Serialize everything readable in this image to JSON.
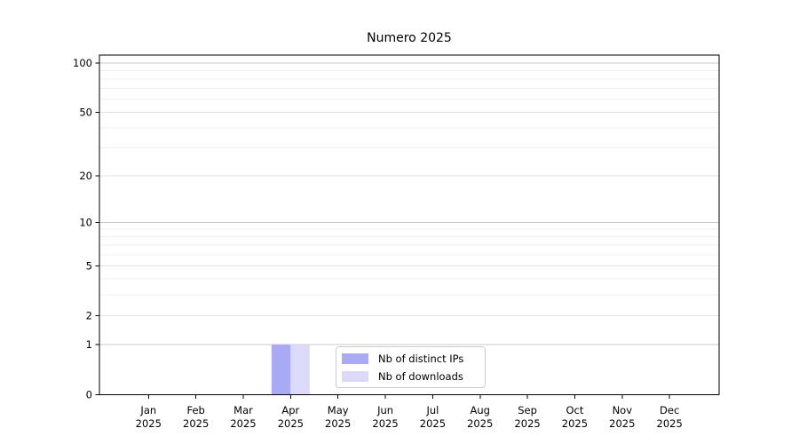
{
  "chart_data": {
    "type": "bar",
    "title": "Numero 2025",
    "xlabel": "",
    "ylabel": "",
    "scale": "log1p",
    "ylim": [
      0,
      112
    ],
    "grid": "horizontal",
    "categories": [
      "Jan",
      "Feb",
      "Mar",
      "Apr",
      "May",
      "Jun",
      "Jul",
      "Aug",
      "Sep",
      "Oct",
      "Nov",
      "Dec"
    ],
    "category_year": "2025",
    "yticks": [
      0,
      1,
      2,
      5,
      10,
      20,
      50,
      100
    ],
    "minor_yticks": [
      3,
      4,
      6,
      7,
      8,
      9,
      30,
      40,
      60,
      70,
      80,
      90
    ],
    "series": [
      {
        "name": "Nb of distinct IPs",
        "color": "#aaaaf4",
        "values": [
          0,
          0,
          0,
          1,
          0,
          0,
          0,
          0,
          0,
          0,
          0,
          0
        ]
      },
      {
        "name": "Nb of downloads",
        "color": "#dbdbf9",
        "values": [
          0,
          0,
          0,
          1,
          0,
          0,
          0,
          0,
          0,
          0,
          0,
          0
        ]
      }
    ],
    "legend": {
      "position": "lower-center"
    },
    "colors": {
      "axis": "#000000",
      "tick_label": "#000000",
      "grid_decade": "#c9c9c9",
      "grid_major": "#e2e2e2",
      "grid_minor": "#f0f0f0",
      "background": "#ffffff"
    }
  }
}
